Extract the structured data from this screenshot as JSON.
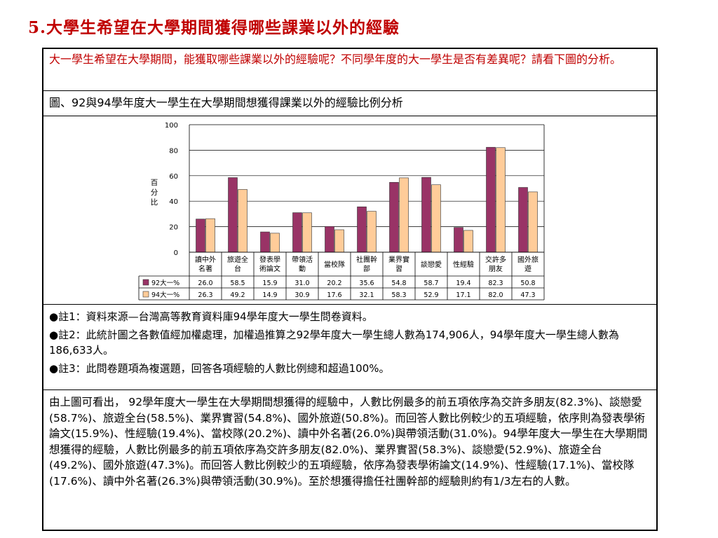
{
  "slide_title": "5.大學生希望在大學期間獲得哪些課業以外的經驗",
  "intro": "大一學生希望在大學期間，能獲取哪些課業以外的經驗呢？不同學年度的大一學生是否有差異呢？請看下圖的分析。",
  "figure_caption": "圖、92與94學年度大一學生在大學期間想獲得課業以外的經驗比例分析",
  "chart_data": {
    "type": "bar",
    "ylabel": "百分比",
    "ylim": [
      0,
      100
    ],
    "yticks": [
      "0",
      "20",
      "40",
      "60",
      "80",
      "100"
    ],
    "grid": true,
    "legend": "table-bottom",
    "categories": [
      "讀中外名著",
      "旅遊全台",
      "發表學術論文",
      "帶領活動",
      "當校隊",
      "社團幹部",
      "業界實習",
      "談戀愛",
      "性經驗",
      "交許多朋友",
      "國外旅遊"
    ],
    "series": [
      {
        "name": "92大一%",
        "values": [
          26.0,
          58.5,
          15.9,
          31.0,
          20.2,
          35.6,
          54.8,
          58.7,
          19.4,
          82.3,
          50.8
        ],
        "labels": [
          "26.0",
          "58.5",
          "15.9",
          "31.0",
          "20.2",
          "35.6",
          "54.8",
          "58.7",
          "19.4",
          "82.3",
          "50.8"
        ]
      },
      {
        "name": "94大一%",
        "values": [
          26.3,
          49.2,
          14.9,
          30.9,
          17.6,
          32.1,
          58.3,
          52.9,
          17.1,
          82.0,
          47.3
        ],
        "labels": [
          "26.3",
          "49.2",
          "14.9",
          "30.9",
          "17.6",
          "32.1",
          "58.3",
          "52.9",
          "17.1",
          "82.0",
          "47.3"
        ]
      }
    ],
    "colors": {
      "series1": "#993366",
      "series2": "#ffcc99",
      "grid": "#000000"
    }
  },
  "notes": [
    "●註1：資料來源—台灣高等教育資料庫94學年度大一學生問卷資料。",
    "●註2：此統計圖之各數值經加權處理，加權過推算之92學年度大一學生總人數為174,906人，94學年度大一學生總人數為186,633人。",
    "●註3：此問卷題項為複選題，回答各項經驗的人數比例總和超過100%。"
  ],
  "analysis": "由上圖可看出， 92學年度大一學生在大學期間想獲得的經驗中，人數比例最多的前五項依序為交許多朋友(82.3%)、談戀愛(58.7%)、旅遊全台(58.5%)、業界實習(54.8%)、國外旅遊(50.8%)。而回答人數比例較少的五項經驗，依序則為發表學術論文(15.9%)、性經驗(19.4%)、當校隊(20.2%)、讀中外名著(26.0%)與帶領活動(31.0%)。94學年度大一學生在大學期間想獲得的經驗，人數比例最多的前五項依序為交許多朋友(82.0%)、業界實習(58.3%)、談戀愛(52.9%)、旅遊全台(49.2%)、國外旅遊(47.3%)。而回答人數比例較少的五項經驗，依序為發表學術論文(14.9%)、性經驗(17.1%)、當校隊(17.6%)、讀中外名著(26.3%)與帶領活動(30.9%)。至於想獲得擔任社團幹部的經驗則約有1/3左右的人數。"
}
